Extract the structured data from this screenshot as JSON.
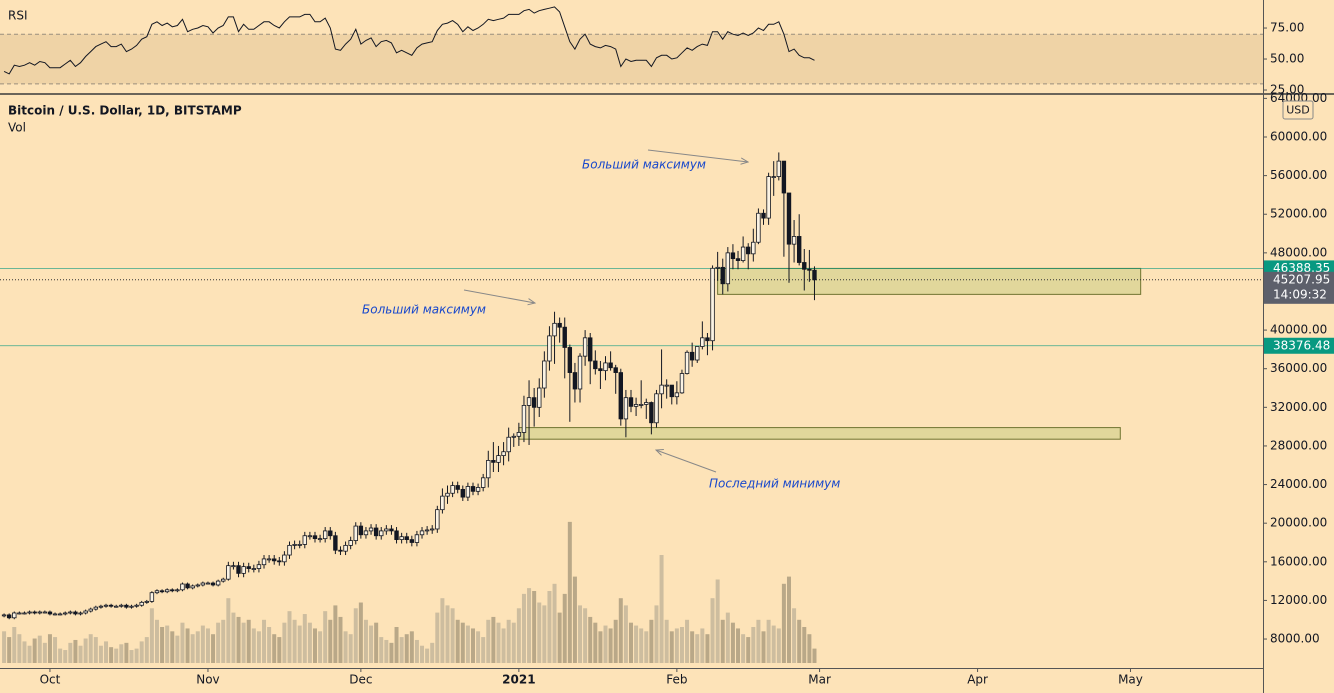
{
  "chart_data": {
    "type": "candlestick",
    "title": "Bitcoin / U.S. Dollar, 1D, BITSTAMP",
    "volume_label": "Vol",
    "rsi_label": "RSI",
    "currency": "USD",
    "countdown": "14:09:32",
    "up_color": "#fbf3e4",
    "down_color": "#131722",
    "volume_up_color": "#cdbd9f",
    "volume_down_color": "#b9a888",
    "xlim": [
      -0.8,
      247
    ],
    "xticks": [
      {
        "value": 9,
        "label": "Oct"
      },
      {
        "value": 40,
        "label": "Nov"
      },
      {
        "value": 70,
        "label": "Dec"
      },
      {
        "value": 101,
        "label": "2021",
        "bold": true
      },
      {
        "value": 132,
        "label": "Feb"
      },
      {
        "value": 160,
        "label": "Mar"
      },
      {
        "value": 191,
        "label": "Apr"
      },
      {
        "value": 221,
        "label": "May"
      }
    ],
    "ylim": [
      5000,
      64350
    ],
    "yticks": [
      {
        "value": 64000,
        "label": "64000.00"
      },
      {
        "value": 60000,
        "label": "60000.00"
      },
      {
        "value": 56000,
        "label": "56000.00"
      },
      {
        "value": 52000,
        "label": "52000.00"
      },
      {
        "value": 48000,
        "label": "48000.00"
      },
      {
        "value": 44000,
        "label": "44000.00"
      },
      {
        "value": 40000,
        "label": "40000.00"
      },
      {
        "value": 36000,
        "label": "36000.00"
      },
      {
        "value": 32000,
        "label": "32000.00"
      },
      {
        "value": 28000,
        "label": "28000.00"
      },
      {
        "value": 24000,
        "label": "24000.00"
      },
      {
        "value": 20000,
        "label": "20000.00"
      },
      {
        "value": 16000,
        "label": "16000.00"
      },
      {
        "value": 12000,
        "label": "12000.00"
      },
      {
        "value": 8000,
        "label": "8000.00"
      }
    ],
    "grid": false,
    "candles": [
      [
        10400,
        10650,
        10250,
        10500
      ],
      [
        10500,
        10650,
        10050,
        10200
      ],
      [
        10200,
        10850,
        10050,
        10700
      ],
      [
        10700,
        10850,
        10550,
        10700
      ],
      [
        10700,
        10850,
        10550,
        10700
      ],
      [
        10700,
        10950,
        10550,
        10800
      ],
      [
        10800,
        10950,
        10550,
        10700
      ],
      [
        10700,
        10950,
        10550,
        10800
      ],
      [
        10800,
        10950,
        10650,
        10800
      ],
      [
        10800,
        10950,
        10450,
        10600
      ],
      [
        10600,
        10750,
        10450,
        10600
      ],
      [
        10600,
        10750,
        10450,
        10600
      ],
      [
        10600,
        10850,
        10450,
        10700
      ],
      [
        10700,
        10950,
        10550,
        10800
      ],
      [
        10800,
        10950,
        10450,
        10600
      ],
      [
        10600,
        10850,
        10450,
        10700
      ],
      [
        10700,
        11050,
        10550,
        10900
      ],
      [
        10900,
        11250,
        10750,
        11100
      ],
      [
        11100,
        11450,
        10950,
        11300
      ],
      [
        11300,
        11550,
        11150,
        11400
      ],
      [
        11400,
        11650,
        11250,
        11500
      ],
      [
        11500,
        11650,
        11250,
        11400
      ],
      [
        11400,
        11550,
        11250,
        11400
      ],
      [
        11400,
        11650,
        11250,
        11500
      ],
      [
        11500,
        11650,
        11150,
        11300
      ],
      [
        11300,
        11550,
        11150,
        11400
      ],
      [
        11400,
        11650,
        11250,
        11500
      ],
      [
        11500,
        11950,
        11350,
        11800
      ],
      [
        11800,
        12050,
        11650,
        11900
      ],
      [
        11900,
        12950,
        11750,
        12800
      ],
      [
        12800,
        13150,
        12650,
        13000
      ],
      [
        13000,
        13150,
        12750,
        12900
      ],
      [
        12900,
        13250,
        12750,
        13100
      ],
      [
        13100,
        13250,
        12850,
        13000
      ],
      [
        13000,
        13250,
        12850,
        13100
      ],
      [
        13100,
        13850,
        12950,
        13700
      ],
      [
        13700,
        13850,
        13150,
        13300
      ],
      [
        13300,
        13650,
        13150,
        13500
      ],
      [
        13500,
        13750,
        13350,
        13600
      ],
      [
        13600,
        13950,
        13450,
        13800
      ],
      [
        13800,
        13950,
        13650,
        13800
      ],
      [
        13800,
        13950,
        13450,
        13600
      ],
      [
        13600,
        14150,
        13450,
        14000
      ],
      [
        14000,
        14350,
        13850,
        14200
      ],
      [
        14200,
        16000,
        14050,
        15600
      ],
      [
        15600,
        16000,
        15200,
        15600
      ],
      [
        15600,
        16000,
        14400,
        14800
      ],
      [
        14800,
        15900,
        14400,
        15500
      ],
      [
        15500,
        15900,
        14900,
        15300
      ],
      [
        15300,
        15700,
        14900,
        15300
      ],
      [
        15300,
        16100,
        14900,
        15700
      ],
      [
        15700,
        16700,
        15300,
        16300
      ],
      [
        16300,
        16700,
        15900,
        16300
      ],
      [
        16300,
        16700,
        15700,
        16100
      ],
      [
        16100,
        16500,
        15600,
        16000
      ],
      [
        16000,
        17100,
        15600,
        16700
      ],
      [
        16700,
        18100,
        16300,
        17700
      ],
      [
        17700,
        18200,
        17300,
        17800
      ],
      [
        17800,
        18200,
        17400,
        17800
      ],
      [
        17800,
        19100,
        17400,
        18700
      ],
      [
        18700,
        19100,
        18300,
        18700
      ],
      [
        18700,
        19100,
        18000,
        18400
      ],
      [
        18400,
        18800,
        18000,
        18400
      ],
      [
        18400,
        19600,
        18000,
        19200
      ],
      [
        19200,
        19600,
        18300,
        18700
      ],
      [
        18700,
        19100,
        16800,
        17200
      ],
      [
        17200,
        17600,
        16700,
        17100
      ],
      [
        17100,
        18100,
        16700,
        17700
      ],
      [
        17700,
        18600,
        17300,
        18200
      ],
      [
        18200,
        20100,
        17800,
        19700
      ],
      [
        19700,
        20100,
        18400,
        18800
      ],
      [
        18800,
        19600,
        18400,
        19200
      ],
      [
        19200,
        19900,
        18800,
        19500
      ],
      [
        19500,
        19900,
        18300,
        18700
      ],
      [
        18700,
        19600,
        18300,
        19200
      ],
      [
        19200,
        19800,
        18800,
        19400
      ],
      [
        19400,
        19800,
        18800,
        19200
      ],
      [
        19200,
        19600,
        17900,
        18300
      ],
      [
        18300,
        19000,
        17900,
        18600
      ],
      [
        18600,
        19000,
        17900,
        18300
      ],
      [
        18300,
        18700,
        17600,
        18000
      ],
      [
        18000,
        19200,
        17600,
        18800
      ],
      [
        18800,
        19600,
        18400,
        19200
      ],
      [
        19200,
        19700,
        18800,
        19300
      ],
      [
        19300,
        19800,
        18900,
        19400
      ],
      [
        19400,
        21800,
        19000,
        21400
      ],
      [
        21400,
        23600,
        21000,
        22800
      ],
      [
        22800,
        23900,
        22000,
        23100
      ],
      [
        23100,
        24300,
        22700,
        23900
      ],
      [
        23900,
        24300,
        23100,
        23500
      ],
      [
        23500,
        23900,
        22300,
        22700
      ],
      [
        22700,
        24200,
        22300,
        23800
      ],
      [
        23800,
        24200,
        22900,
        23300
      ],
      [
        23300,
        24100,
        22900,
        23700
      ],
      [
        23700,
        25100,
        23300,
        24700
      ],
      [
        24700,
        27500,
        23700,
        26500
      ],
      [
        26500,
        28400,
        25300,
        26300
      ],
      [
        26300,
        28000,
        25300,
        27000
      ],
      [
        27000,
        28400,
        26000,
        27400
      ],
      [
        27400,
        29900,
        26400,
        28900
      ],
      [
        28900,
        29300,
        27900,
        29000
      ],
      [
        29000,
        30400,
        28000,
        29400
      ],
      [
        29400,
        33200,
        28400,
        32200
      ],
      [
        32200,
        34800,
        28100,
        33000
      ],
      [
        33000,
        34000,
        30000,
        32000
      ],
      [
        32000,
        35000,
        31000,
        34000
      ],
      [
        34000,
        37800,
        33000,
        36800
      ],
      [
        36800,
        40400,
        35800,
        39400
      ],
      [
        39400,
        41900,
        36500,
        40700
      ],
      [
        40700,
        41300,
        38700,
        40300
      ],
      [
        40300,
        41300,
        35000,
        38200
      ],
      [
        38200,
        38500,
        30500,
        35600
      ],
      [
        35600,
        36600,
        32500,
        33900
      ],
      [
        33900,
        37600,
        32500,
        37300
      ],
      [
        37300,
        40000,
        36300,
        39200
      ],
      [
        39200,
        39700,
        34400,
        36800
      ],
      [
        36800,
        37900,
        35400,
        36000
      ],
      [
        36000,
        36800,
        33900,
        35800
      ],
      [
        35800,
        37300,
        34800,
        36600
      ],
      [
        36600,
        37800,
        35800,
        36100
      ],
      [
        36100,
        36400,
        33400,
        35600
      ],
      [
        35600,
        36000,
        30100,
        30800
      ],
      [
        30800,
        33800,
        28900,
        33000
      ],
      [
        33000,
        33800,
        31500,
        32100
      ],
      [
        32100,
        33000,
        31100,
        32300
      ],
      [
        32300,
        34800,
        31900,
        32300
      ],
      [
        32300,
        32900,
        30800,
        32500
      ],
      [
        32500,
        32600,
        29200,
        30400
      ],
      [
        30400,
        33800,
        29900,
        33400
      ],
      [
        33400,
        38000,
        31900,
        34300
      ],
      [
        34300,
        34900,
        32900,
        34300
      ],
      [
        34300,
        34300,
        32300,
        33100
      ],
      [
        33100,
        34700,
        32300,
        33500
      ],
      [
        33500,
        35900,
        33400,
        35500
      ],
      [
        35500,
        37900,
        35400,
        37700
      ],
      [
        37700,
        38700,
        36200,
        36900
      ],
      [
        36900,
        38300,
        36600,
        38300
      ],
      [
        38300,
        40900,
        38000,
        39200
      ],
      [
        39200,
        39700,
        37400,
        38900
      ],
      [
        38900,
        46700,
        37900,
        46400
      ],
      [
        46400,
        48100,
        45100,
        46500
      ],
      [
        46500,
        47400,
        43700,
        44800
      ],
      [
        44800,
        48600,
        44000,
        48000
      ],
      [
        48000,
        48900,
        46300,
        47400
      ],
      [
        47400,
        48200,
        46300,
        47200
      ],
      [
        47200,
        49700,
        47000,
        48600
      ],
      [
        48600,
        49000,
        46300,
        47900
      ],
      [
        47900,
        50500,
        47100,
        49100
      ],
      [
        49100,
        52600,
        48900,
        52100
      ],
      [
        52100,
        52500,
        50900,
        51600
      ],
      [
        51600,
        56300,
        50900,
        55900
      ],
      [
        55900,
        57500,
        53900,
        55900
      ],
      [
        55900,
        58400,
        55500,
        57500
      ],
      [
        57500,
        57500,
        47600,
        54200
      ],
      [
        54200,
        54200,
        44900,
        48900
      ],
      [
        48900,
        51400,
        47000,
        49700
      ],
      [
        49700,
        52000,
        46700,
        47000
      ],
      [
        47000,
        48400,
        44100,
        46300
      ],
      [
        46300,
        48300,
        45000,
        46200
      ],
      [
        46200,
        46600,
        43100,
        45207.95
      ]
    ],
    "volume_lim": [
      0,
      100
    ],
    "volume": [
      22,
      18,
      25,
      20,
      15,
      12,
      17,
      19,
      14,
      20,
      18,
      10,
      9,
      14,
      16,
      12,
      17,
      20,
      18,
      12,
      15,
      11,
      10,
      13,
      14,
      9,
      10,
      15,
      18,
      38,
      30,
      25,
      26,
      22,
      19,
      28,
      24,
      20,
      22,
      26,
      24,
      20,
      28,
      30,
      45,
      35,
      32,
      28,
      30,
      24,
      22,
      30,
      25,
      20,
      18,
      28,
      36,
      30,
      26,
      34,
      28,
      24,
      22,
      36,
      30,
      40,
      32,
      22,
      20,
      38,
      42,
      30,
      26,
      28,
      18,
      16,
      14,
      25,
      18,
      20,
      22,
      16,
      12,
      10,
      14,
      35,
      45,
      40,
      38,
      30,
      28,
      26,
      24,
      22,
      18,
      30,
      32,
      28,
      24,
      30,
      28,
      38,
      48,
      52,
      50,
      42,
      40,
      50,
      55,
      35,
      48,
      98,
      60,
      40,
      38,
      32,
      28,
      22,
      26,
      24,
      30,
      45,
      40,
      28,
      26,
      24,
      22,
      30,
      40,
      75,
      30,
      22,
      24,
      25,
      30,
      22,
      20,
      24,
      20,
      45,
      58,
      30,
      35,
      28,
      24,
      20,
      18,
      25,
      30,
      22,
      30,
      26,
      24,
      55,
      60,
      38,
      30,
      25,
      20,
      10
    ],
    "rsi": [
      40,
      38,
      45,
      44,
      45,
      47,
      45,
      48,
      47,
      43,
      43,
      43,
      46,
      49,
      44,
      47,
      52,
      56,
      60,
      62,
      64,
      60,
      60,
      62,
      56,
      58,
      61,
      66,
      68,
      78,
      80,
      77,
      79,
      76,
      77,
      82,
      72,
      74,
      75,
      77,
      76,
      71,
      75,
      77,
      84,
      84,
      72,
      78,
      74,
      74,
      77,
      80,
      80,
      77,
      75,
      80,
      84,
      84,
      84,
      86,
      86,
      80,
      80,
      83,
      75,
      58,
      57,
      62,
      66,
      74,
      62,
      65,
      67,
      60,
      64,
      65,
      63,
      55,
      57,
      55,
      53,
      59,
      62,
      63,
      64,
      73,
      78,
      79,
      81,
      78,
      72,
      76,
      73,
      75,
      78,
      82,
      81,
      82,
      83,
      86,
      86,
      86,
      89,
      90,
      87,
      89,
      90,
      91,
      92,
      88,
      76,
      64,
      58,
      66,
      70,
      62,
      60,
      59,
      61,
      60,
      58,
      44,
      50,
      48,
      49,
      49,
      49,
      44,
      51,
      53,
      53,
      50,
      51,
      55,
      59,
      57,
      60,
      62,
      61,
      72,
      72,
      66,
      72,
      70,
      69,
      71,
      69,
      71,
      75,
      73,
      78,
      78,
      80,
      70,
      56,
      58,
      53,
      51,
      51,
      49
    ],
    "rsi_ylim": [
      22.6,
      97.6
    ],
    "rsi_bands": [
      30,
      70
    ],
    "rsi_yticks": [
      {
        "value": 75,
        "label": "75.00"
      },
      {
        "value": 50,
        "label": "50.00"
      },
      {
        "value": 25,
        "label": "25.00"
      }
    ],
    "levels": [
      {
        "value": 46388.35,
        "color": "#089981"
      },
      {
        "value": 38376.48,
        "color": "#089981"
      }
    ],
    "zones": [
      {
        "x": [
          140,
          223
        ],
        "y": [
          43700,
          46388.35
        ]
      },
      {
        "x": [
          101,
          219
        ],
        "y": [
          28700,
          29900
        ]
      }
    ],
    "annotations": [
      "Больший максимум",
      "Больший максимум",
      "Последний минимум"
    ]
  }
}
